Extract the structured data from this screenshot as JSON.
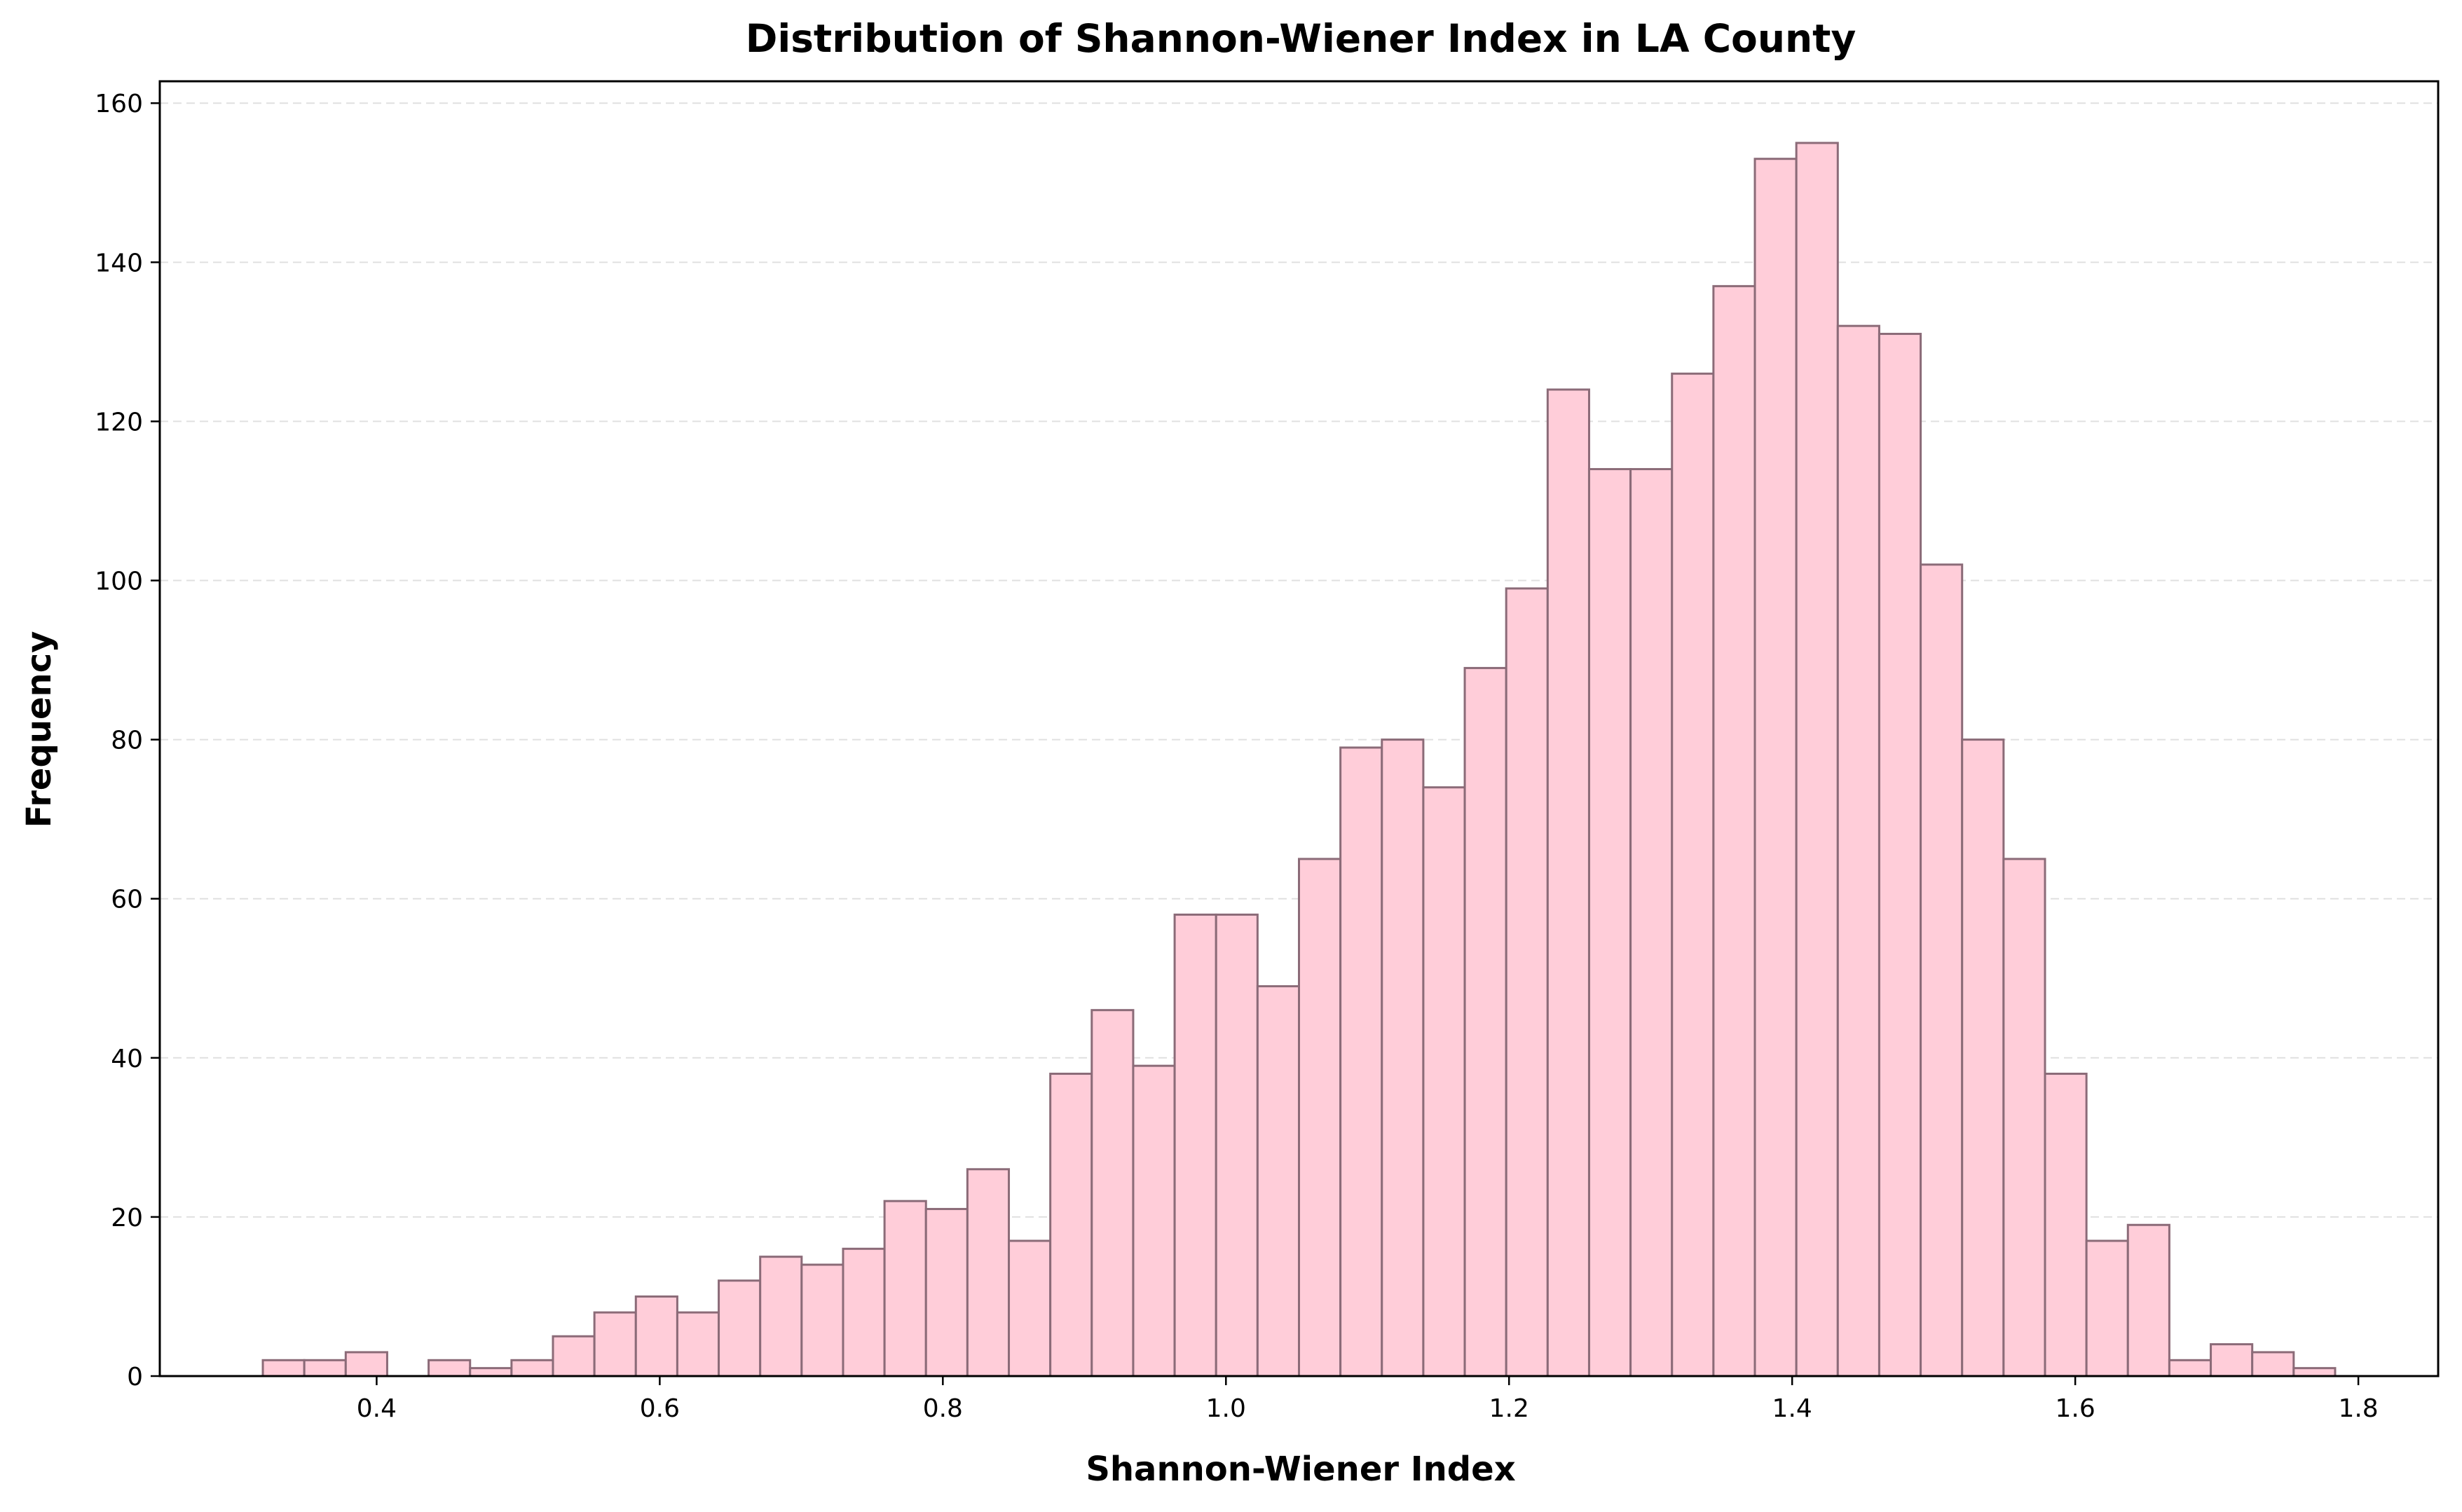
{
  "chart_data": {
    "type": "bar",
    "title": "Distribution of Shannon-Wiener Index in LA County",
    "xlabel": "Shannon-Wiener Index",
    "ylabel": "Frequency",
    "xlim": [
      0.2468,
      1.8564
    ],
    "ylim": [
      0,
      162.75
    ],
    "x_ticks": [
      "0.4",
      "0.6",
      "0.8",
      "1.0",
      "1.2",
      "1.4",
      "1.6",
      "1.8"
    ],
    "y_ticks": [
      "0",
      "20",
      "40",
      "60",
      "80",
      "100",
      "120",
      "140",
      "160"
    ],
    "grid": "y-dashed",
    "bin_range": [
      0.3196,
      1.7836
    ],
    "values": [
      2,
      2,
      3,
      0,
      2,
      1,
      2,
      5,
      8,
      10,
      8,
      12,
      15,
      14,
      16,
      22,
      21,
      26,
      17,
      38,
      46,
      39,
      58,
      58,
      49,
      65,
      79,
      80,
      74,
      89,
      99,
      124,
      114,
      114,
      126,
      137,
      153,
      155,
      132,
      131,
      102,
      80,
      65,
      38,
      17,
      19,
      2,
      4,
      3,
      1
    ],
    "colors": {
      "bar_fill": "#ffcdd9",
      "bar_edge": "#8b6b78",
      "grid": "#cccccc"
    }
  }
}
